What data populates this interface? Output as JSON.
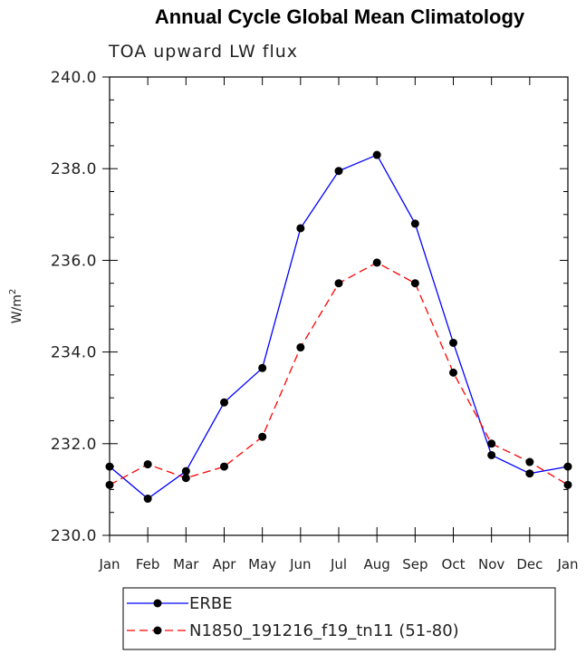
{
  "chart_data": {
    "type": "line",
    "title": "Annual Cycle Global Mean Climatology",
    "subtitle": "TOA upward LW flux",
    "ylabel": "W/m",
    "ylabel_superscript": "2",
    "xlabel": "",
    "categories": [
      "Jan",
      "Feb",
      "Mar",
      "Apr",
      "May",
      "Jun",
      "Jul",
      "Aug",
      "Sep",
      "Oct",
      "Nov",
      "Dec",
      "Jan"
    ],
    "ylim": [
      230.0,
      240.0
    ],
    "yticks": [
      "230.0",
      "232.0",
      "234.0",
      "236.0",
      "238.0",
      "240.0"
    ],
    "grid": false,
    "legend_position": "bottom",
    "series": [
      {
        "name": "ERBE",
        "color": "#0000ff",
        "dash": "solid",
        "marker": "filled-circle",
        "values": [
          231.5,
          230.8,
          231.4,
          232.9,
          233.65,
          236.7,
          237.95,
          238.3,
          236.8,
          234.2,
          231.75,
          231.35,
          231.5
        ]
      },
      {
        "name": "N1850_191216_f19_tn11 (51-80)",
        "color": "#ff0000",
        "dash": "dashed",
        "marker": "filled-circle",
        "values": [
          231.1,
          231.55,
          231.25,
          231.5,
          232.15,
          234.1,
          235.5,
          235.95,
          235.5,
          233.55,
          232.0,
          231.6,
          231.1
        ]
      }
    ]
  }
}
